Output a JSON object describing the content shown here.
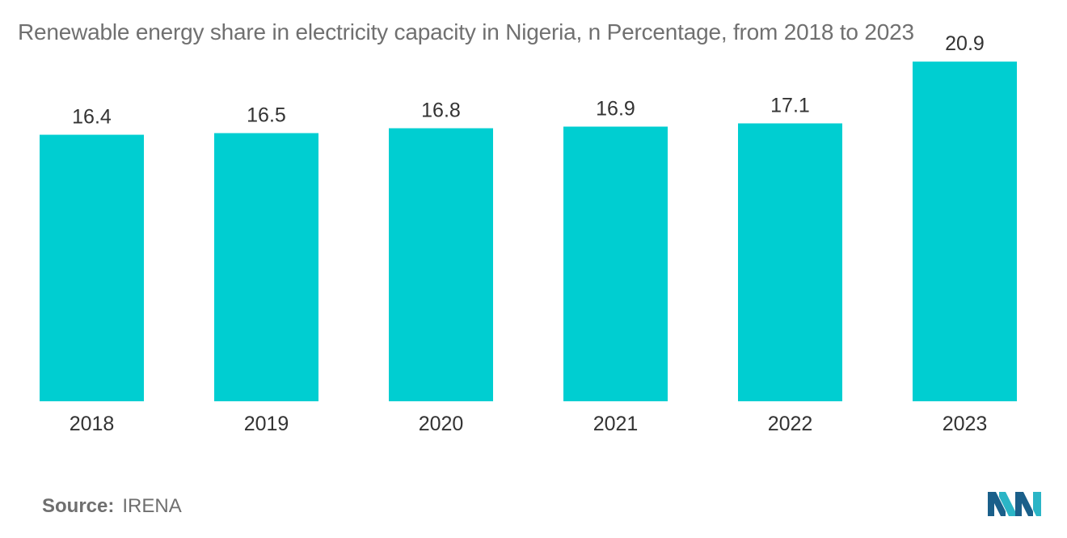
{
  "chart_data": {
    "type": "bar",
    "title": "Renewable energy share in electricity capacity in Nigeria, n Percentage, from 2018 to 2023",
    "categories": [
      "2018",
      "2019",
      "2020",
      "2021",
      "2022",
      "2023"
    ],
    "values": [
      16.4,
      16.5,
      16.8,
      16.9,
      17.1,
      20.9
    ],
    "data_labels": [
      "16.4",
      "16.5",
      "16.8",
      "16.9",
      "17.1",
      "20.9"
    ],
    "xlabel": "",
    "ylabel": "",
    "ylim": [
      0,
      22.7
    ],
    "grid": false,
    "legend": "none",
    "bar_color": "#00CED1"
  },
  "footer": {
    "source_label": "Source:",
    "source_value": "IRENA"
  },
  "colors": {
    "bar": "#00CED1",
    "title_text": "#707070",
    "label_text": "#333333",
    "logo_dark": "#1a5f8a",
    "logo_light": "#2bb5c6"
  }
}
